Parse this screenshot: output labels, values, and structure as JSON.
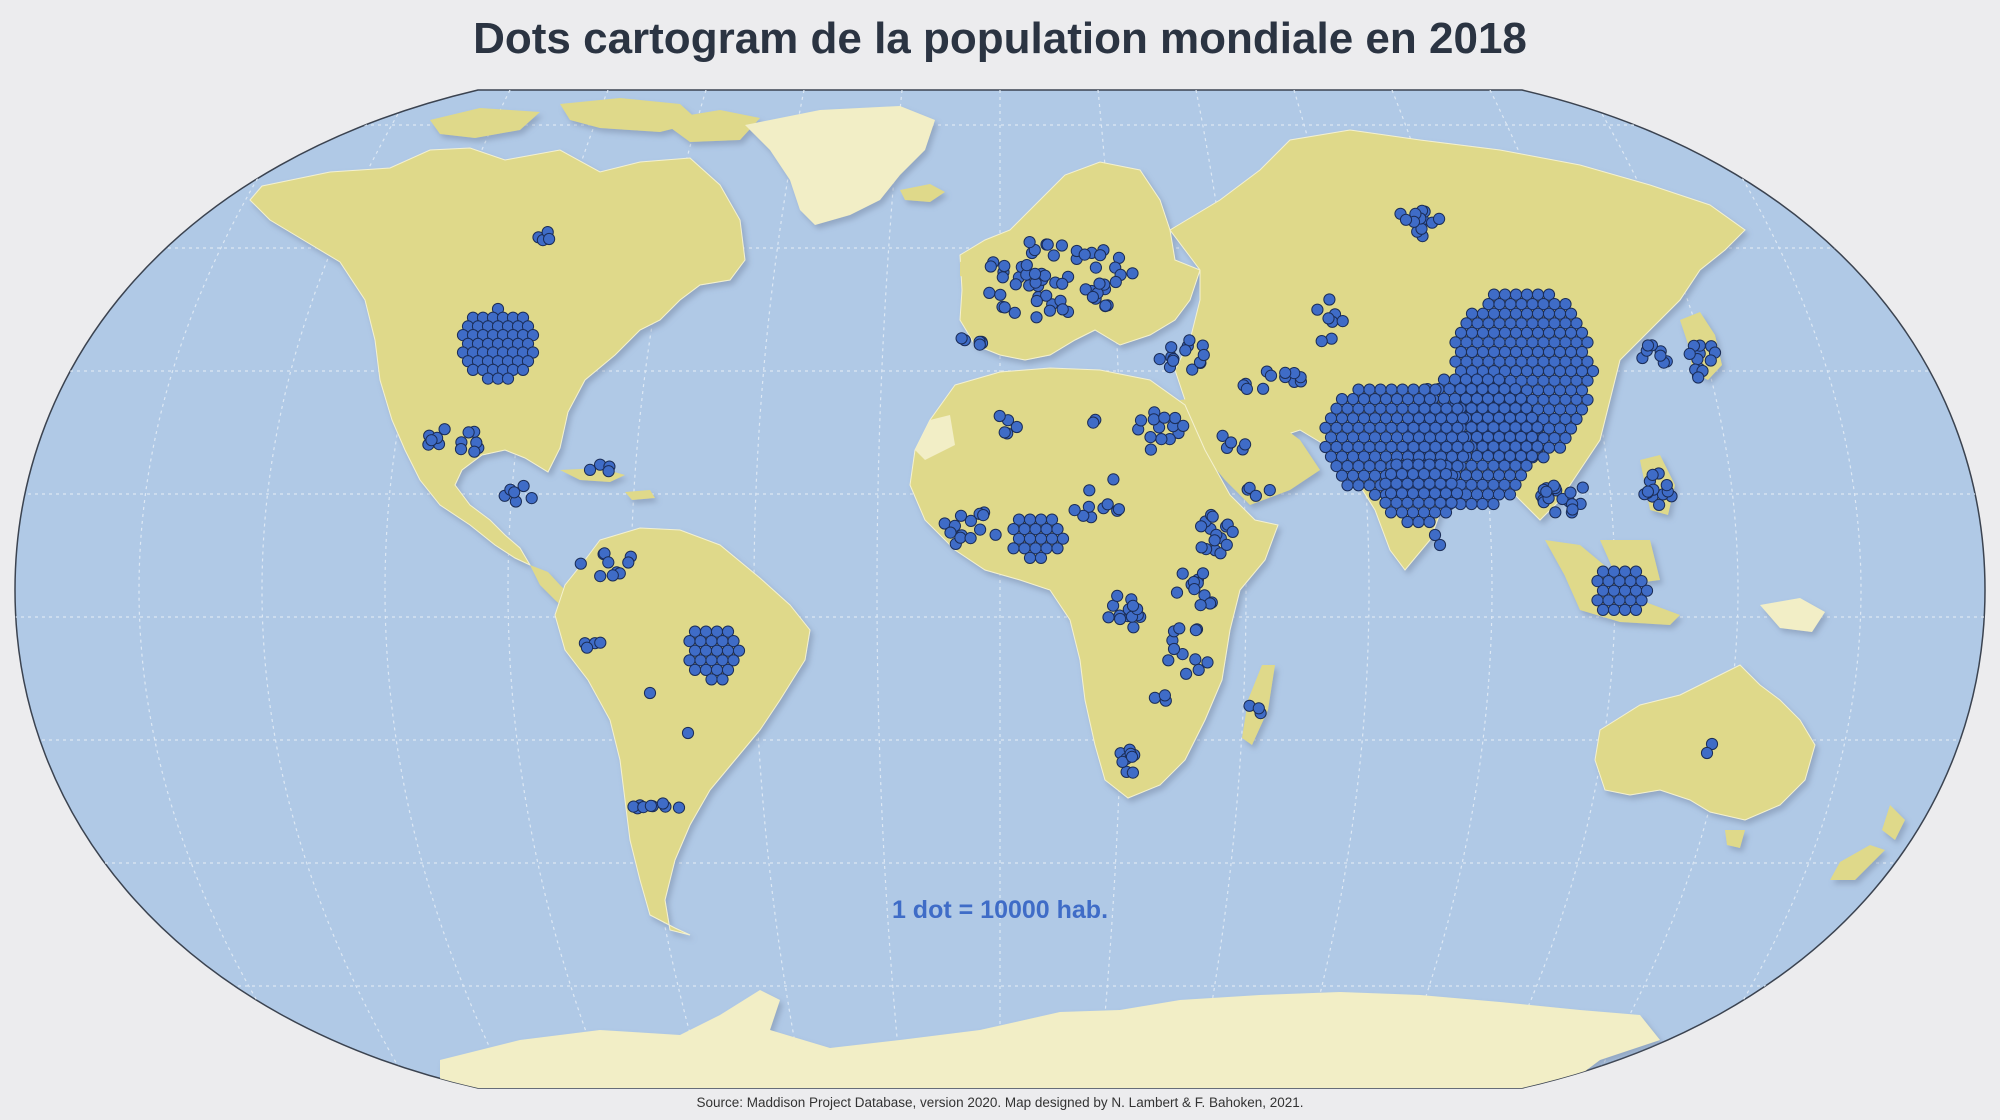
{
  "map": {
    "title": "Dots cartogram de la population mondiale en 2018",
    "legend": "1 dot = 10000 hab.",
    "source": "Source: Maddison Project Database, version 2020. Map designed by N. Lambert & F. Bahoken, 2021.",
    "projection": "Winkel Tripel (world, graticule)",
    "colors": {
      "ocean": "#b0c9e6",
      "land": "#dfd98a",
      "ice": "#f2eec6",
      "dot_fill": "#3f6cc7",
      "dot_stroke": "#1b2d57",
      "graticule": "#dde8f4",
      "background": "#ececee"
    },
    "dot_clusters": [
      {
        "region": "China / India / Southeast Asia",
        "dots": 520
      },
      {
        "region": "Indonesia",
        "dots": 30
      },
      {
        "region": "United States",
        "dots": 35
      },
      {
        "region": "Brazil",
        "dots": 22
      },
      {
        "region": "Nigeria / West Africa",
        "dots": 40
      },
      {
        "region": "Europe",
        "dots": 60
      },
      {
        "region": "Russia",
        "dots": 15
      },
      {
        "region": "Japan",
        "dots": 13
      },
      {
        "region": "Mexico",
        "dots": 13
      },
      {
        "region": "Other",
        "dots": 220
      }
    ]
  }
}
